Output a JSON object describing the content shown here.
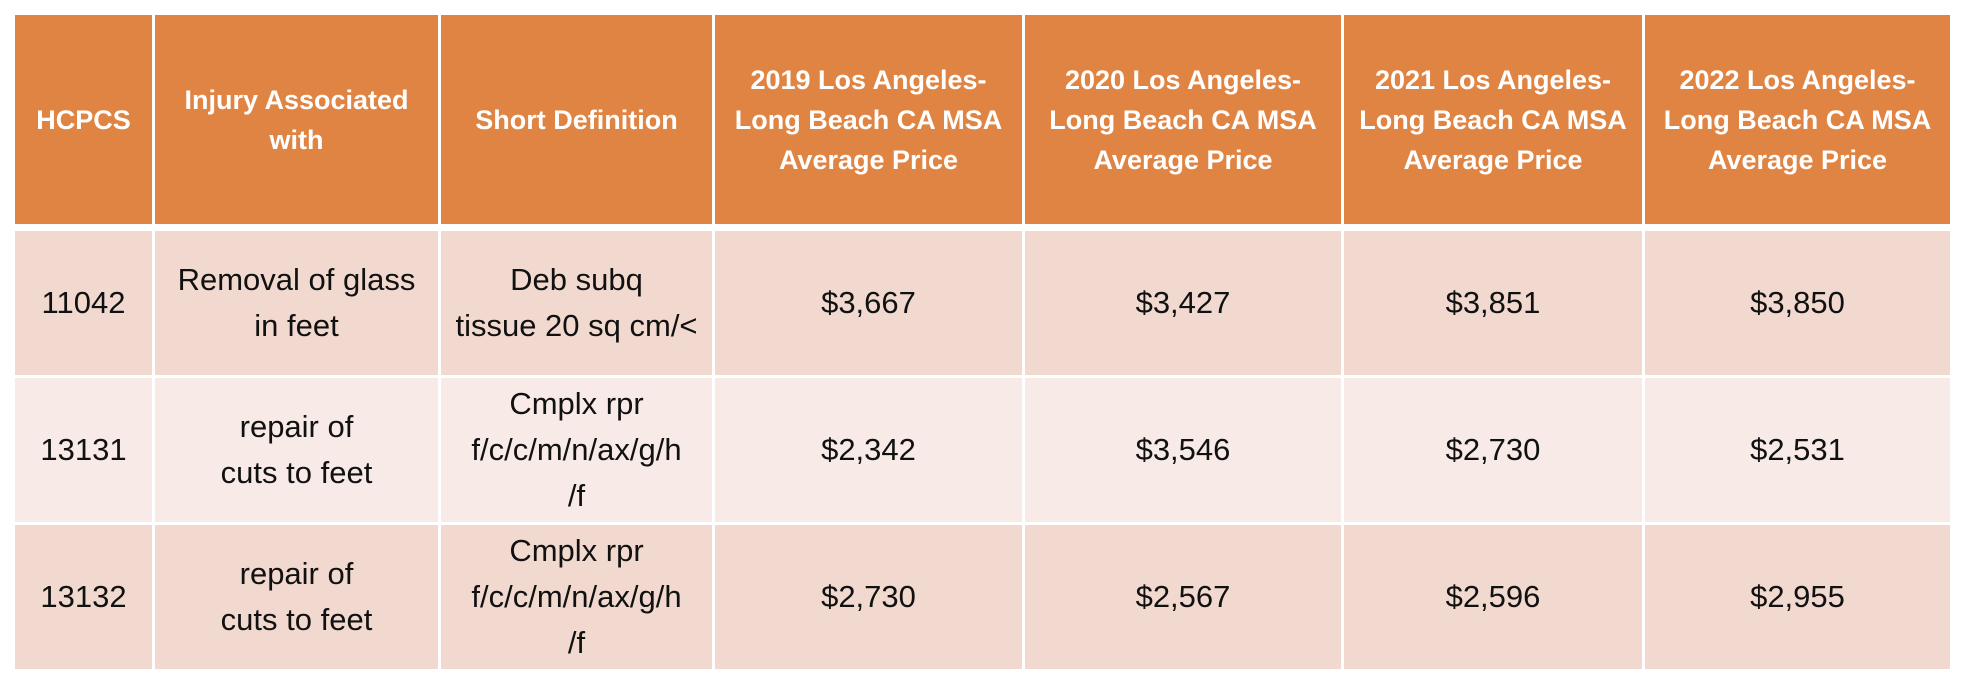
{
  "table": {
    "headers": [
      {
        "lines": [
          "HCPCS"
        ]
      },
      {
        "lines": [
          "Injury Associated",
          "with"
        ]
      },
      {
        "lines": [
          "Short Definition"
        ]
      },
      {
        "lines": [
          "2019 Los Angeles-",
          "Long Beach CA MSA",
          "Average Price"
        ]
      },
      {
        "lines": [
          "2020 Los Angeles-",
          "Long Beach CA MSA",
          "Average Price"
        ]
      },
      {
        "lines": [
          "2021 Los Angeles-",
          "Long Beach CA MSA",
          "Average Price"
        ]
      },
      {
        "lines": [
          "2022 Los Angeles-",
          "Long Beach CA MSA",
          "Average Price"
        ]
      }
    ],
    "rows": [
      {
        "hcpcs": "11042",
        "injury": [
          "Removal of glass",
          "in feet"
        ],
        "definition": [
          "Deb subq",
          "tissue 20 sq cm/<"
        ],
        "p2019": "$3,667",
        "p2020": "$3,427",
        "p2021": "$3,851",
        "p2022": "$3,850"
      },
      {
        "hcpcs": "13131",
        "injury": [
          "repair of",
          "cuts to feet"
        ],
        "definition": [
          "Cmplx rpr",
          "f/c/c/m/n/ax/g/h",
          "/f"
        ],
        "p2019": "$2,342",
        "p2020": "$3,546",
        "p2021": "$2,730",
        "p2022": "$2,531"
      },
      {
        "hcpcs": "13132",
        "injury": [
          "repair of",
          "cuts to feet"
        ],
        "definition": [
          "Cmplx rpr",
          "f/c/c/m/n/ax/g/h",
          "/f"
        ],
        "p2019": "$2,730",
        "p2020": "$2,567",
        "p2021": "$2,596",
        "p2022": "$2,955"
      }
    ]
  }
}
